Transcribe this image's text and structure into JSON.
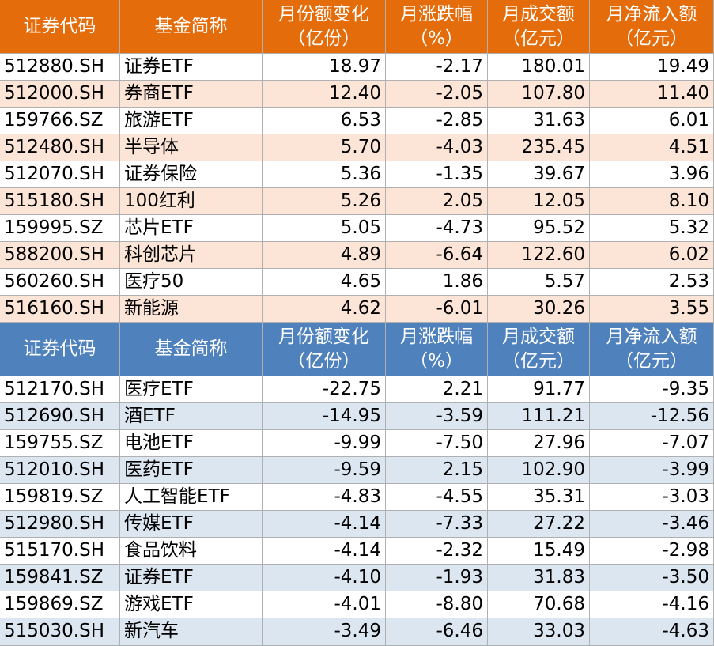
{
  "tables": [
    {
      "header": [
        [
          "证券代码"
        ],
        [
          "基金简称"
        ],
        [
          "月份额变化",
          "（亿份）"
        ],
        [
          "月涨跌幅",
          "（%）"
        ],
        [
          "月成交额",
          "（亿元）"
        ],
        [
          "月净流入额",
          "（亿元）"
        ]
      ],
      "rows": [
        [
          "512880.SH",
          "证券ETF",
          "18.97",
          "-2.17",
          "180.01",
          "19.49"
        ],
        [
          "512000.SH",
          "券商ETF",
          "12.40",
          "-2.05",
          "107.80",
          "11.40"
        ],
        [
          "159766.SZ",
          "旅游ETF",
          "6.53",
          "-2.85",
          "31.63",
          "6.01"
        ],
        [
          "512480.SH",
          "半导体",
          "5.70",
          "-4.03",
          "235.45",
          "4.51"
        ],
        [
          "512070.SH",
          "证券保险",
          "5.36",
          "-1.35",
          "39.67",
          "3.96"
        ],
        [
          "515180.SH",
          "100红利",
          "5.26",
          "2.05",
          "12.05",
          "8.10"
        ],
        [
          "159995.SZ",
          "芯片ETF",
          "5.05",
          "-4.73",
          "95.52",
          "5.32"
        ],
        [
          "588200.SH",
          "科创芯片",
          "4.89",
          "-6.64",
          "122.60",
          "6.02"
        ],
        [
          "560260.SH",
          "医疗50",
          "4.65",
          "1.86",
          "5.57",
          "2.53"
        ],
        [
          "516160.SH",
          "新能源",
          "4.62",
          "-6.01",
          "30.26",
          "3.55"
        ]
      ]
    },
    {
      "header": [
        [
          "证券代码"
        ],
        [
          "基金简称"
        ],
        [
          "月份额变化",
          "（亿份）"
        ],
        [
          "月涨跌幅",
          "（%）"
        ],
        [
          "月成交额",
          "（亿元）"
        ],
        [
          "月净流入额",
          "（亿元）"
        ]
      ],
      "rows": [
        [
          "512170.SH",
          "医疗ETF",
          "-22.75",
          "2.21",
          "91.77",
          "-9.35"
        ],
        [
          "512690.SH",
          "酒ETF",
          "-14.95",
          "-3.59",
          "111.21",
          "-12.56"
        ],
        [
          "159755.SZ",
          "电池ETF",
          "-9.99",
          "-7.50",
          "27.96",
          "-7.07"
        ],
        [
          "512010.SH",
          "医药ETF",
          "-9.59",
          "2.15",
          "102.90",
          "-3.99"
        ],
        [
          "159819.SZ",
          "人工智能ETF",
          "-4.83",
          "-4.55",
          "35.31",
          "-3.03"
        ],
        [
          "512980.SH",
          "传媒ETF",
          "-4.14",
          "-7.33",
          "27.22",
          "-3.46"
        ],
        [
          "515170.SH",
          "食品饮料",
          "-4.14",
          "-2.32",
          "15.49",
          "-2.98"
        ],
        [
          "159841.SZ",
          "证券ETF",
          "-4.10",
          "-1.93",
          "31.83",
          "-3.50"
        ],
        [
          "159869.SZ",
          "游戏ETF",
          "-4.01",
          "-8.80",
          "70.68",
          "-4.16"
        ],
        [
          "515030.SH",
          "新汽车",
          "-3.49",
          "-6.46",
          "33.03",
          "-4.63"
        ]
      ]
    }
  ]
}
